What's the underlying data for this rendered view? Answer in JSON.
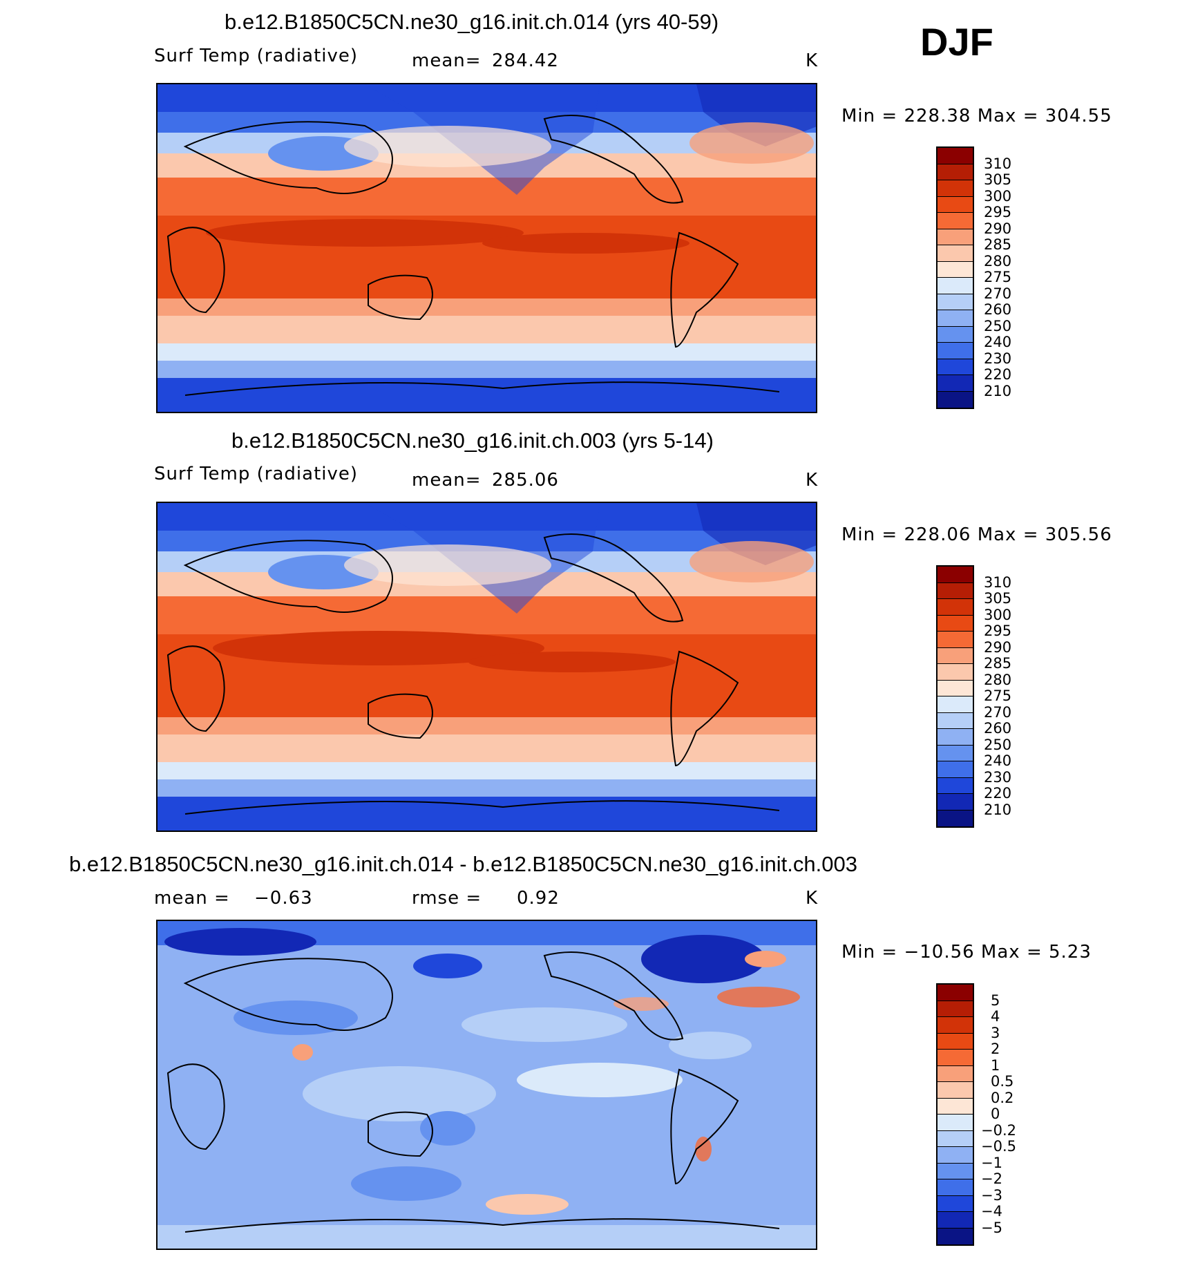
{
  "season": "DJF",
  "panels": [
    {
      "title": "b.e12.B1850C5CN.ne30_g16.init.ch.014 (yrs 40-59)",
      "variable": "Surf Temp (radiative)",
      "mean_label": "mean=",
      "mean_value": "284.42",
      "units": "K",
      "minmax": "Min  =  228.38  Max  =  304.55"
    },
    {
      "title": "b.e12.B1850C5CN.ne30_g16.init.ch.003 (yrs 5-14)",
      "variable": "Surf Temp (radiative)",
      "mean_label": "mean=",
      "mean_value": "285.06",
      "units": "K",
      "minmax": "Min  =  228.06  Max  =  305.56"
    },
    {
      "title": "b.e12.B1850C5CN.ne30_g16.init.ch.014 - b.e12.B1850C5CN.ne30_g16.init.ch.003",
      "mean_label": "mean  =",
      "mean_value": "−0.63",
      "rmse_label": "rmse  =",
      "rmse_value": "0.92",
      "units": "K",
      "minmax": "Min  =  −10.56  Max  =      5.23"
    }
  ],
  "colorbar_abs": {
    "labels": [
      "310",
      "305",
      "300",
      "295",
      "290",
      "285",
      "280",
      "275",
      "270",
      "260",
      "250",
      "240",
      "230",
      "220",
      "210"
    ],
    "colors": [
      "#8b0000",
      "#b51e05",
      "#d23308",
      "#e84a14",
      "#f56a35",
      "#f8a07a",
      "#fbc8ad",
      "#fde6d6",
      "#dbeafa",
      "#b5cff7",
      "#8fb1f3",
      "#6592ef",
      "#3f6fe9",
      "#1f47da",
      "#1228b5",
      "#0a1485"
    ]
  },
  "colorbar_diff": {
    "labels": [
      "5",
      "4",
      "3",
      "2",
      "1",
      "0.5",
      "0.2",
      "0",
      "−0.2",
      "−0.5",
      "−1",
      "−2",
      "−3",
      "−4",
      "−5"
    ],
    "colors": [
      "#8b0000",
      "#b51e05",
      "#d23308",
      "#e84a14",
      "#f56a35",
      "#f8a07a",
      "#fbc8ad",
      "#fde6d6",
      "#dbeafa",
      "#b5cff7",
      "#8fb1f3",
      "#6592ef",
      "#3f6fe9",
      "#1f47da",
      "#1228b5",
      "#0a1485"
    ]
  }
}
